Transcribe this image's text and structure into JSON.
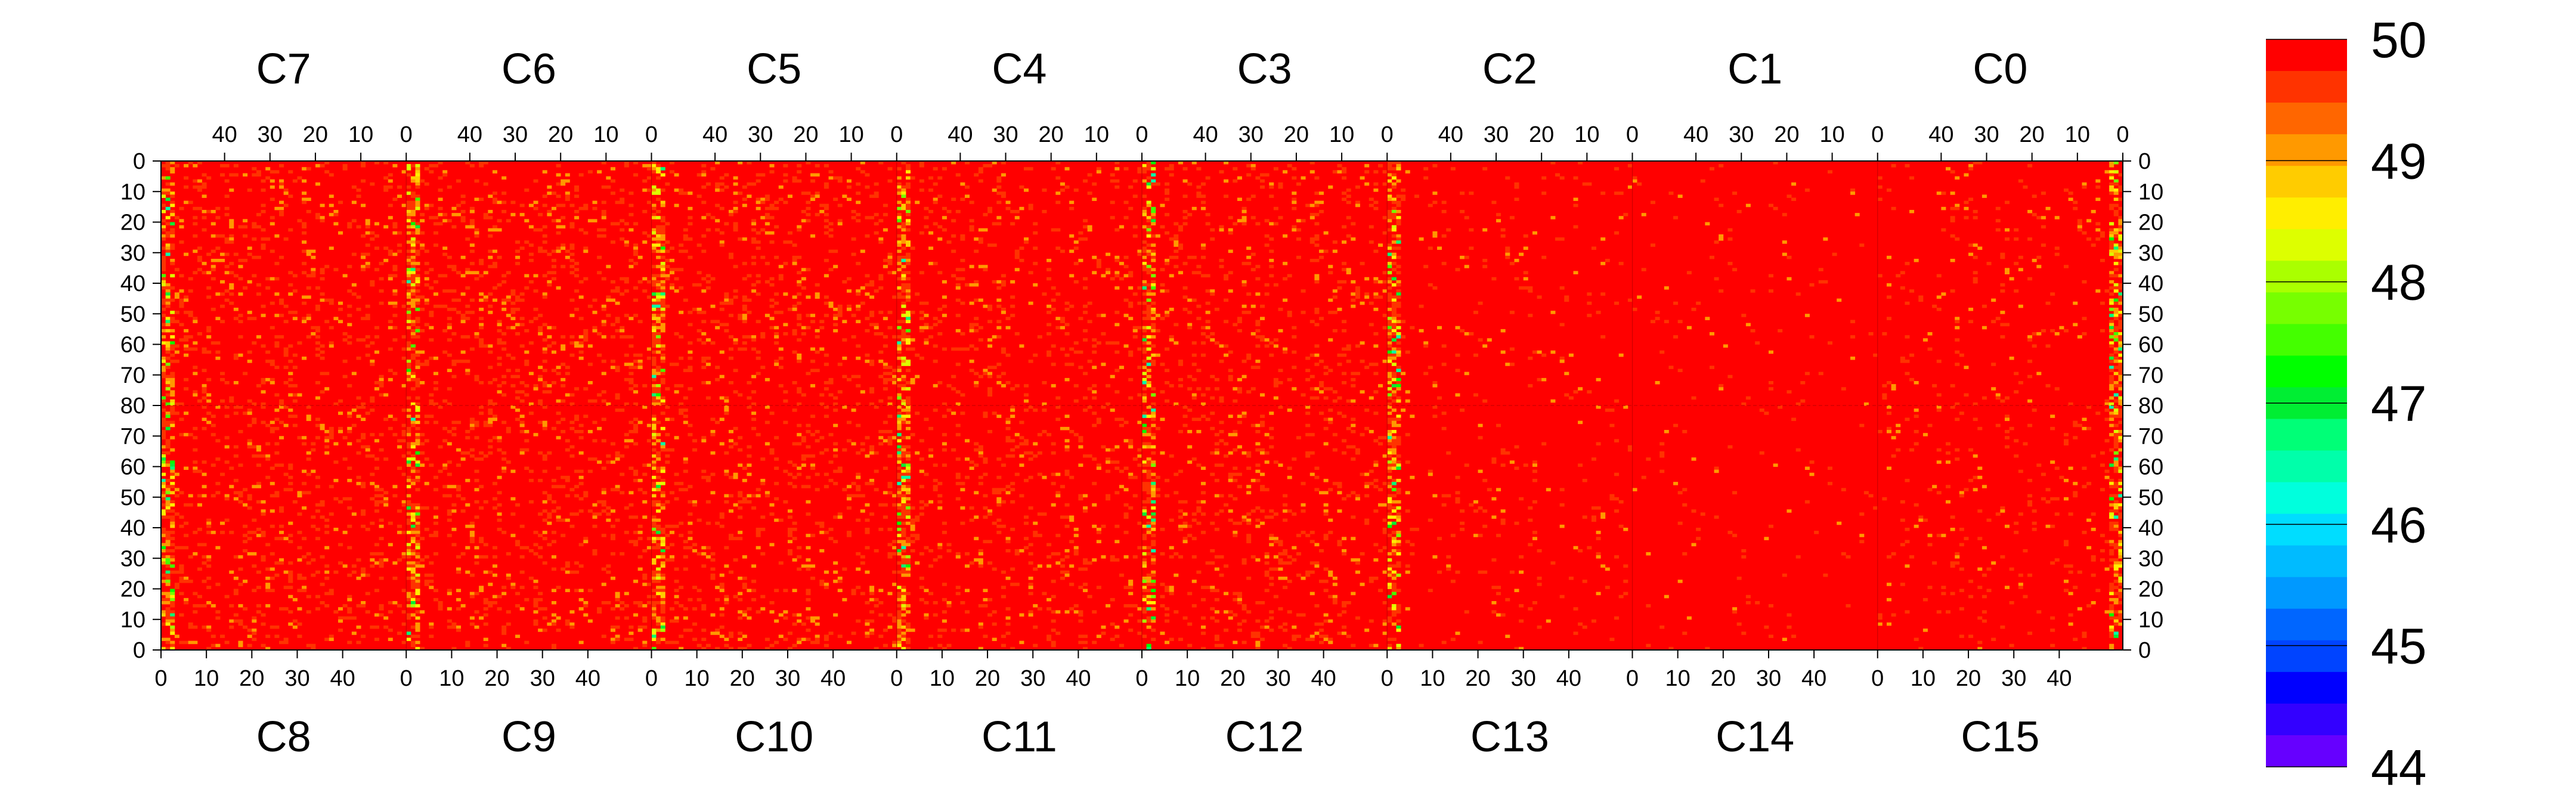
{
  "chart_data": {
    "type": "heatmap",
    "title": "",
    "top_group_labels": [
      "C7",
      "C6",
      "C5",
      "C4",
      "C3",
      "C2",
      "C1",
      "C0"
    ],
    "bottom_group_labels": [
      "C8",
      "C9",
      "C10",
      "C11",
      "C12",
      "C13",
      "C14",
      "C15"
    ],
    "top_axis_ticks": [
      "40",
      "30",
      "20",
      "10",
      "0"
    ],
    "bottom_axis_ticks": [
      "0",
      "10",
      "20",
      "30",
      "40"
    ],
    "left_axis_ticks": [
      "0",
      "10",
      "20",
      "30",
      "40",
      "50",
      "60",
      "70",
      "80",
      "70",
      "60",
      "50",
      "40",
      "30",
      "20",
      "10",
      "0"
    ],
    "right_axis_ticks": [
      "0",
      "10",
      "20",
      "30",
      "40",
      "50",
      "60",
      "70",
      "80",
      "70",
      "60",
      "50",
      "40",
      "30",
      "20",
      "10",
      "0"
    ],
    "columns_per_group": 54,
    "rows_per_half": 80,
    "value_range": [
      44,
      50
    ],
    "colorbar_ticks": [
      "50",
      "49",
      "48",
      "47",
      "46",
      "45",
      "44"
    ],
    "colorbar_colors": [
      "#ff0000",
      "#ff3300",
      "#ff6600",
      "#ff9900",
      "#ffcc00",
      "#ffee00",
      "#ddff00",
      "#aaff00",
      "#77ff00",
      "#44ff00",
      "#00ff00",
      "#00ee33",
      "#00ff77",
      "#00ffaa",
      "#00ffdd",
      "#00ddff",
      "#00bbff",
      "#0099ff",
      "#0066ff",
      "#0044ff",
      "#0000ff",
      "#3300ff",
      "#6600ff"
    ],
    "group_summary": [
      {
        "top": "C7",
        "bottom": "C8",
        "dominant_value": 50,
        "scatter_fraction": 0.13,
        "low_edge": "left"
      },
      {
        "top": "C6",
        "bottom": "C9",
        "dominant_value": 50,
        "scatter_fraction": 0.14,
        "low_edge": "left"
      },
      {
        "top": "C5",
        "bottom": "C10",
        "dominant_value": 50,
        "scatter_fraction": 0.13,
        "low_edge": "left"
      },
      {
        "top": "C4",
        "bottom": "C11",
        "dominant_value": 50,
        "scatter_fraction": 0.11,
        "low_edge": "left"
      },
      {
        "top": "C3",
        "bottom": "C12",
        "dominant_value": 50,
        "scatter_fraction": 0.12,
        "low_edge": "left"
      },
      {
        "top": "C2",
        "bottom": "C13",
        "dominant_value": 50,
        "scatter_fraction": 0.04,
        "low_edge": "left"
      },
      {
        "top": "C1",
        "bottom": "C14",
        "dominant_value": 50,
        "scatter_fraction": 0.02,
        "low_edge": "none"
      },
      {
        "top": "C0",
        "bottom": "C15",
        "dominant_value": 50,
        "scatter_fraction": 0.05,
        "low_edge": "right"
      }
    ]
  }
}
